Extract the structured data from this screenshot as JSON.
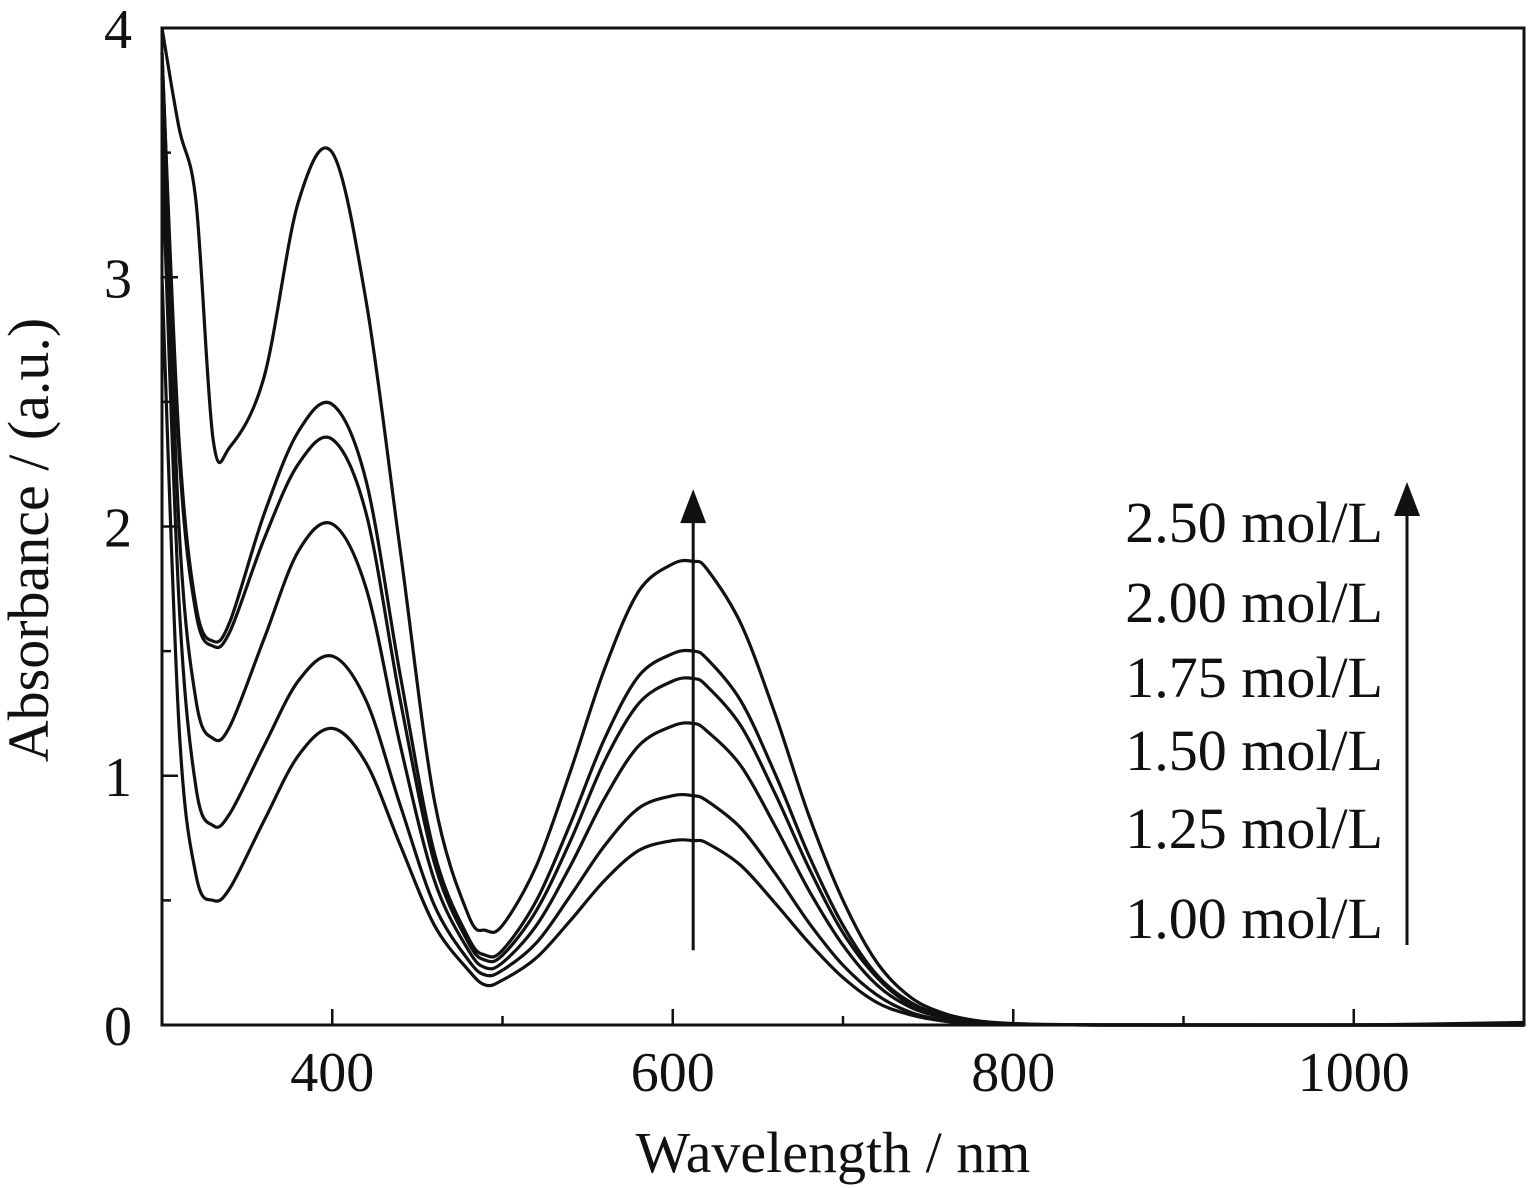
{
  "chart_data": {
    "type": "line",
    "title": "",
    "xlabel": "Wavelength / nm",
    "ylabel": "Absorbance / (a.u.)",
    "xlim": [
      300,
      1100
    ],
    "ylim": [
      0,
      4
    ],
    "x_ticks": [
      400,
      600,
      800,
      1000
    ],
    "y_ticks": [
      0,
      1,
      2,
      3,
      4
    ],
    "x_minor_ticks": [
      500,
      700,
      900
    ],
    "y_minor_ticks": [
      0.5,
      1.5,
      2.5,
      3.5
    ],
    "grid": false,
    "legend": "right, stacked labels with upward arrow",
    "arrow_annotation": {
      "x": 612,
      "y_from": 0.3,
      "y_to": 2.15
    },
    "x": [
      300,
      310,
      320,
      330,
      340,
      360,
      380,
      400,
      420,
      440,
      460,
      480,
      490,
      500,
      520,
      540,
      560,
      580,
      600,
      612,
      620,
      640,
      660,
      680,
      700,
      720,
      740,
      760,
      780,
      800,
      820,
      850,
      900,
      1000,
      1100
    ],
    "series": [
      {
        "name": "1.00 mol/L",
        "label": "1.00 mol/L",
        "values": [
          3.0,
          1.2,
          0.6,
          0.5,
          0.55,
          0.82,
          1.08,
          1.19,
          1.05,
          0.72,
          0.4,
          0.22,
          0.16,
          0.18,
          0.27,
          0.42,
          0.58,
          0.7,
          0.74,
          0.74,
          0.73,
          0.64,
          0.49,
          0.33,
          0.19,
          0.09,
          0.04,
          0.015,
          0.006,
          0.002,
          0.001,
          0.0,
          0.0,
          0.0,
          0.0
        ]
      },
      {
        "name": "1.25 mol/L",
        "label": "1.25 mol/L",
        "values": [
          3.5,
          1.7,
          0.95,
          0.8,
          0.85,
          1.12,
          1.38,
          1.48,
          1.3,
          0.88,
          0.48,
          0.26,
          0.2,
          0.22,
          0.33,
          0.52,
          0.72,
          0.87,
          0.92,
          0.92,
          0.9,
          0.79,
          0.61,
          0.41,
          0.24,
          0.12,
          0.05,
          0.02,
          0.008,
          0.003,
          0.001,
          0.0,
          0.0,
          0.0,
          0.0
        ]
      },
      {
        "name": "1.50 mol/L",
        "label": "1.50 mol/L",
        "values": [
          3.8,
          2.0,
          1.3,
          1.15,
          1.2,
          1.55,
          1.9,
          2.01,
          1.75,
          1.12,
          0.58,
          0.3,
          0.23,
          0.25,
          0.4,
          0.64,
          0.91,
          1.12,
          1.2,
          1.21,
          1.18,
          1.04,
          0.8,
          0.54,
          0.32,
          0.16,
          0.07,
          0.03,
          0.01,
          0.004,
          0.001,
          0.0,
          0.0,
          0.0,
          0.0
        ]
      },
      {
        "name": "1.75 mol/L",
        "label": "1.75 mol/L",
        "values": [
          3.9,
          2.3,
          1.65,
          1.52,
          1.58,
          1.95,
          2.25,
          2.35,
          2.05,
          1.3,
          0.65,
          0.33,
          0.26,
          0.28,
          0.46,
          0.74,
          1.06,
          1.29,
          1.38,
          1.39,
          1.36,
          1.2,
          0.93,
          0.63,
          0.37,
          0.19,
          0.08,
          0.03,
          0.012,
          0.004,
          0.001,
          0.0,
          0.0,
          0.0,
          0.0
        ]
      },
      {
        "name": "2.00 mol/L",
        "label": "2.00 mol/L",
        "values": [
          3.9,
          2.35,
          1.68,
          1.54,
          1.62,
          2.05,
          2.38,
          2.49,
          2.18,
          1.4,
          0.69,
          0.35,
          0.28,
          0.3,
          0.5,
          0.81,
          1.15,
          1.4,
          1.49,
          1.5,
          1.47,
          1.3,
          1.01,
          0.68,
          0.4,
          0.2,
          0.09,
          0.035,
          0.013,
          0.005,
          0.002,
          0.0,
          0.0,
          0.0,
          0.0
        ]
      },
      {
        "name": "2.50 mol/L",
        "label": "2.50 mol/L",
        "values": [
          4.0,
          3.6,
          3.3,
          2.35,
          2.32,
          2.6,
          3.3,
          3.5,
          2.9,
          1.9,
          0.9,
          0.44,
          0.38,
          0.4,
          0.64,
          1.02,
          1.43,
          1.74,
          1.85,
          1.86,
          1.83,
          1.61,
          1.25,
          0.84,
          0.5,
          0.25,
          0.11,
          0.045,
          0.016,
          0.006,
          0.002,
          0.001,
          0.0,
          0.0,
          0.01
        ]
      }
    ]
  }
}
